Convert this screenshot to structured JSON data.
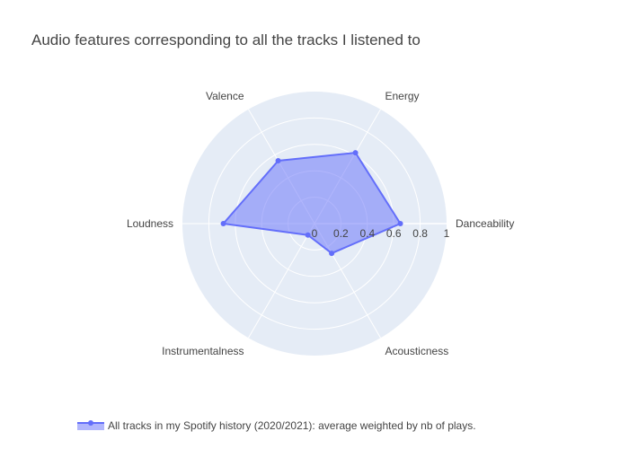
{
  "chart_data": {
    "type": "radar",
    "title": "Audio features corresponding to all the tracks I listened to",
    "categories": [
      "Danceability",
      "Energy",
      "Valence",
      "Loudness",
      "Instrumentalness",
      "Acousticness"
    ],
    "radial_range": [
      0,
      1
    ],
    "radial_ticks": [
      "0",
      "0.2",
      "0.4",
      "0.6",
      "0.8",
      "1"
    ],
    "series": [
      {
        "name": "All tracks in my Spotify history (2020/2021): average weighted by nb of plays.",
        "values": [
          0.65,
          0.62,
          0.55,
          0.69,
          0.1,
          0.26
        ],
        "color": "#636efa"
      }
    ],
    "colors": {
      "polar_background": "#e5ecf6",
      "grid": "#ffffff",
      "fill": "#636efa",
      "line": "#636efa"
    },
    "grid": true,
    "legend_position": "bottom"
  }
}
